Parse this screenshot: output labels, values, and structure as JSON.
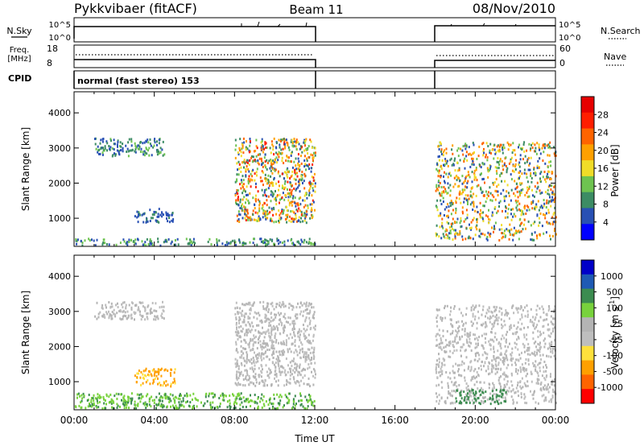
{
  "header": {
    "title": "Pykkvibaer (fitACF)",
    "beam": "Beam 11",
    "date": "08/Nov/2010"
  },
  "nsky_panel": {
    "left_label": "N.Sky",
    "left_ticks": [
      "10^5",
      "10^0"
    ],
    "right_ticks": [
      "10^5",
      "10^0"
    ],
    "right_label": "N.Search"
  },
  "freq_panel": {
    "left_label_1": "Freq.",
    "left_label_2": "[MHz]",
    "left_ticks": [
      "18",
      "8"
    ],
    "right_ticks": [
      "60",
      "0"
    ],
    "right_label": "Nave"
  },
  "cpid": {
    "label": "CPID",
    "text": "normal (fast stereo) 153"
  },
  "colors": {
    "power_scale": [
      "#0000ff",
      "#2850b4",
      "#3c8c64",
      "#6ec350",
      "#f0dc28",
      "#ffa000",
      "#ff6400",
      "#ff1e00",
      "#e60000"
    ],
    "velocity_scale": [
      "#ff0000",
      "#ff6400",
      "#ffa000",
      "#ffe13c",
      "#bebebe",
      "#b4b4b4",
      "#78d23c",
      "#3c8c50",
      "#1e5ab4",
      "#0000c8"
    ]
  },
  "chart_data": [
    {
      "type": "heatmap",
      "name": "power",
      "ylabel": "Slant Range [km]",
      "yticks": [
        "1000",
        "2000",
        "3000",
        "4000"
      ],
      "ylim": [
        200,
        4600
      ],
      "xlim_hours": [
        0,
        24
      ],
      "colorbar": {
        "label": "Power [dB]",
        "ticks": [
          "4",
          "8",
          "12",
          "16",
          "20",
          "24",
          "28"
        ],
        "range": [
          0,
          32
        ]
      },
      "data_gaps_ut": [
        [
          12.0,
          18.0
        ]
      ],
      "echo_regions": [
        {
          "ut": [
            0.0,
            12.0
          ],
          "range_km": [
            250,
            450
          ],
          "power_db": [
            4,
            16
          ]
        },
        {
          "ut": [
            1.0,
            4.5
          ],
          "range_km": [
            2800,
            3300
          ],
          "power_db": [
            4,
            14
          ]
        },
        {
          "ut": [
            3.0,
            5.0
          ],
          "range_km": [
            900,
            1300
          ],
          "power_db": [
            4,
            10
          ]
        },
        {
          "ut": [
            8.0,
            12.0
          ],
          "range_km": [
            900,
            3300
          ],
          "power_db": [
            4,
            30
          ]
        },
        {
          "ut": [
            18.0,
            24.0
          ],
          "range_km": [
            400,
            3200
          ],
          "power_db": [
            4,
            28
          ]
        }
      ]
    },
    {
      "type": "heatmap",
      "name": "velocity",
      "ylabel": "Slant Range [km]",
      "yticks": [
        "1000",
        "2000",
        "3000",
        "4000"
      ],
      "ylim": [
        200,
        4600
      ],
      "xlim_hours": [
        0,
        24
      ],
      "xticks": [
        "00:00",
        "04:00",
        "08:00",
        "12:00",
        "16:00",
        "20:00",
        "00:00"
      ],
      "xlabel": "Time UT",
      "colorbar": {
        "label": "Velocity [m s^-1]",
        "ticks": [
          "1000",
          "500",
          "100",
          "25",
          "-25",
          "-100",
          "-500",
          "-1000"
        ],
        "range": [
          -1200,
          1200
        ]
      },
      "data_gaps_ut": [
        [
          12.0,
          18.0
        ]
      ],
      "echo_regions": [
        {
          "ut": [
            0.0,
            12.0
          ],
          "range_km": [
            250,
            700
          ],
          "velocity_ms": [
            25,
            150
          ]
        },
        {
          "ut": [
            1.0,
            4.5
          ],
          "range_km": [
            2800,
            3300
          ],
          "velocity_ms": [
            -25,
            25
          ]
        },
        {
          "ut": [
            3.0,
            5.0
          ],
          "range_km": [
            900,
            1400
          ],
          "velocity_ms": [
            -300,
            -25
          ]
        },
        {
          "ut": [
            8.0,
            12.0
          ],
          "range_km": [
            900,
            3300
          ],
          "velocity_ms": [
            -25,
            25
          ]
        },
        {
          "ut": [
            18.0,
            24.0
          ],
          "range_km": [
            400,
            3200
          ],
          "velocity_ms": [
            -25,
            25
          ]
        },
        {
          "ut": [
            19.0,
            21.5
          ],
          "range_km": [
            400,
            800
          ],
          "velocity_ms": [
            100,
            500
          ]
        }
      ]
    }
  ]
}
